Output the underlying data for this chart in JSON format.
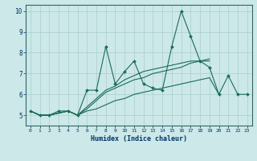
{
  "xlabel": "Humidex (Indice chaleur)",
  "ylabel": "",
  "xlim": [
    -0.5,
    23.5
  ],
  "ylim": [
    4.5,
    10.3
  ],
  "background_color": "#cce8e8",
  "grid_color": "#aacece",
  "line_color": "#1a6b5a",
  "label_color": "#003366",
  "yticks": [
    5,
    6,
    7,
    8,
    9,
    10
  ],
  "xticks": [
    0,
    1,
    2,
    3,
    4,
    5,
    6,
    7,
    8,
    9,
    10,
    11,
    12,
    13,
    14,
    15,
    16,
    17,
    18,
    19,
    20,
    21,
    22,
    23
  ],
  "series": [
    [
      5.2,
      5.0,
      5.0,
      5.2,
      5.2,
      5.0,
      6.2,
      6.2,
      8.3,
      6.5,
      7.1,
      7.6,
      6.5,
      6.3,
      6.2,
      8.3,
      10.0,
      8.8,
      7.6,
      7.3,
      6.0,
      6.9,
      6.0,
      6.0
    ],
    [
      5.2,
      5.0,
      5.0,
      5.1,
      5.2,
      5.0,
      5.2,
      5.3,
      5.5,
      5.7,
      5.8,
      6.0,
      6.1,
      6.2,
      6.3,
      6.4,
      6.5,
      6.6,
      6.7,
      6.8,
      6.0,
      null,
      null,
      null
    ],
    [
      5.2,
      5.0,
      5.0,
      5.1,
      5.2,
      5.0,
      5.3,
      5.7,
      6.1,
      6.3,
      6.5,
      6.7,
      6.8,
      7.0,
      7.1,
      7.2,
      7.3,
      7.5,
      7.6,
      7.6,
      null,
      null,
      null,
      null
    ],
    [
      5.2,
      5.0,
      5.0,
      5.1,
      5.2,
      5.0,
      5.4,
      5.8,
      6.2,
      6.4,
      6.7,
      6.9,
      7.1,
      7.2,
      7.3,
      7.4,
      7.5,
      7.6,
      7.6,
      7.7,
      null,
      null,
      null,
      null
    ]
  ],
  "series_markers": [
    true,
    false,
    false,
    false
  ]
}
